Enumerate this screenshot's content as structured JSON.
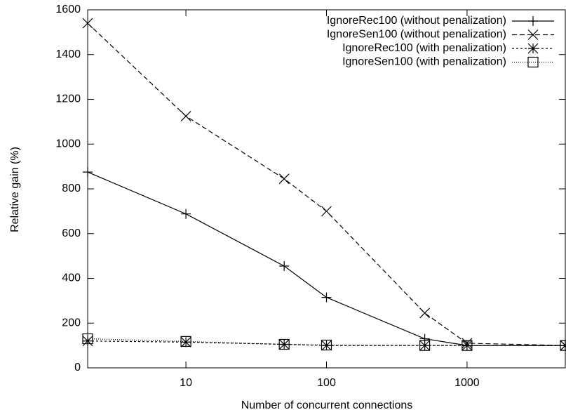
{
  "chart_data": {
    "type": "line",
    "x_label": "Number of concurrent connections",
    "y_label": "Relative gain (%)",
    "x": [
      2,
      10,
      50,
      100,
      500,
      1000,
      5000
    ],
    "xlim": [
      2,
      5000
    ],
    "xticks": [
      10,
      100,
      1000
    ],
    "xscale": "log",
    "ylim": [
      0,
      1600
    ],
    "yticks": [
      0,
      200,
      400,
      600,
      800,
      1000,
      1200,
      1400,
      1600
    ],
    "grid": false,
    "legend": "top-right",
    "series": [
      {
        "name": "IgnoreRec100 (without penalization)",
        "color": "#000000",
        "dash": "solid",
        "marker": "plus",
        "values": [
          875,
          688,
          455,
          315,
          130,
          100,
          100
        ]
      },
      {
        "name": "IgnoreSen100 (without penalization)",
        "color": "#000000",
        "dash": "dashed",
        "marker": "cross",
        "values": [
          1540,
          1125,
          845,
          700,
          245,
          110,
          100
        ]
      },
      {
        "name": "IgnoreRec100 (with penalization)",
        "color": "#000000",
        "dash": "short-dash",
        "marker": "star",
        "values": [
          120,
          115,
          105,
          100,
          100,
          100,
          100
        ]
      },
      {
        "name": "IgnoreSen100 (with penalization)",
        "color": "#000000",
        "dash": "dotted",
        "marker": "square",
        "values": [
          130,
          118,
          105,
          102,
          100,
          100,
          100
        ]
      }
    ]
  }
}
